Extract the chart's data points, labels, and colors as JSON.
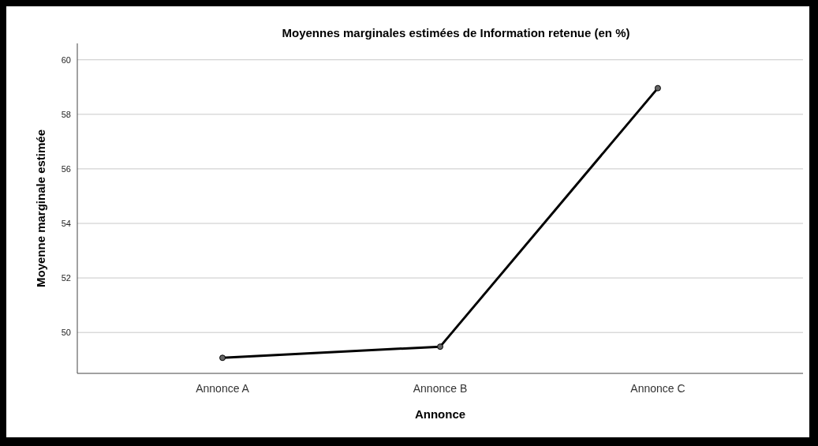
{
  "chart_data": {
    "type": "line",
    "title": "Moyennes marginales estimées de Information retenue (en %)",
    "xlabel": "Annonce",
    "ylabel": "Moyenne marginale estimée",
    "categories": [
      "Annonce A",
      "Annonce B",
      "Annonce C"
    ],
    "series": [
      {
        "color": "#000000",
        "values": [
          49.07,
          49.48,
          58.96
        ]
      }
    ],
    "ylim": [
      48.5,
      60.6
    ],
    "yticks": [
      50,
      52,
      54,
      56,
      58,
      60
    ],
    "grid": "y",
    "marker": "circle",
    "line_style": "solid"
  }
}
